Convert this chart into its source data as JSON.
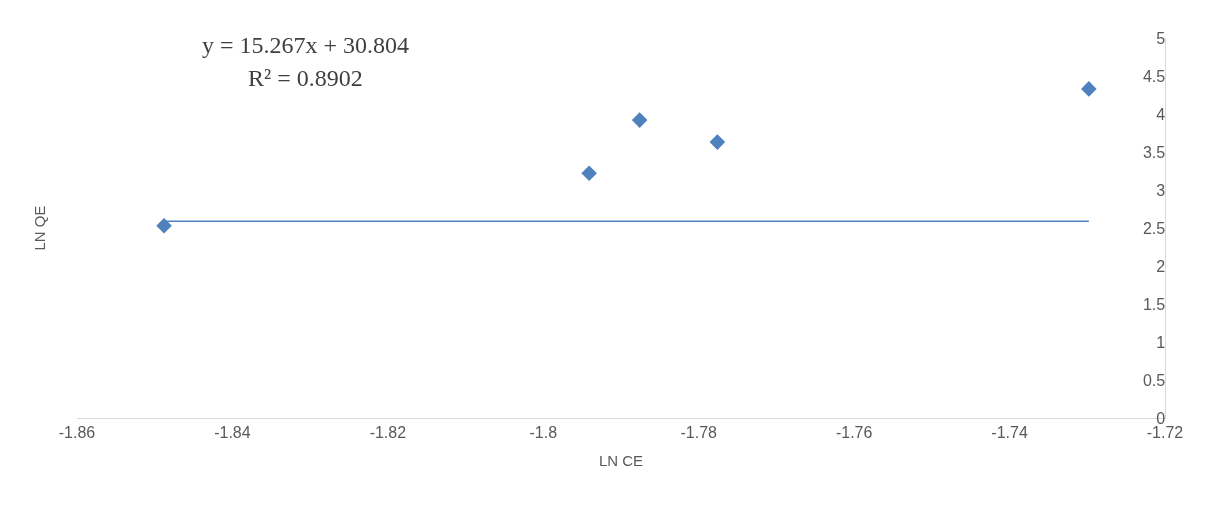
{
  "chart_data": {
    "type": "scatter",
    "xlabel": "LN CE",
    "ylabel": "LN QE",
    "annotations": [
      "y = 15.267x + 30.804",
      "R² = 0.8902"
    ],
    "series": [
      {
        "color": "#4f81bd",
        "marker": "diamond",
        "x": [
          -1.8488,
          -1.7941,
          -1.7876,
          -1.7776,
          -1.7298
        ],
        "values": [
          2.53,
          3.22,
          3.92,
          3.63,
          4.33
        ]
      },
      {
        "type": "line",
        "color": "#4f81bd",
        "marker": "none",
        "line_style": "solid",
        "x": [
          -1.8488,
          -1.7298
        ],
        "values": [
          2.59,
          2.59
        ]
      }
    ],
    "xlim": [
      -1.86,
      -1.72
    ],
    "xticks": [
      -1.86,
      -1.84,
      -1.82,
      -1.8,
      -1.78,
      -1.76,
      -1.74,
      -1.72
    ],
    "ylim": [
      0,
      5
    ],
    "yticks": [
      0,
      0.5,
      1,
      1.5,
      2,
      2.5,
      3,
      3.5,
      4,
      4.5,
      5
    ]
  }
}
